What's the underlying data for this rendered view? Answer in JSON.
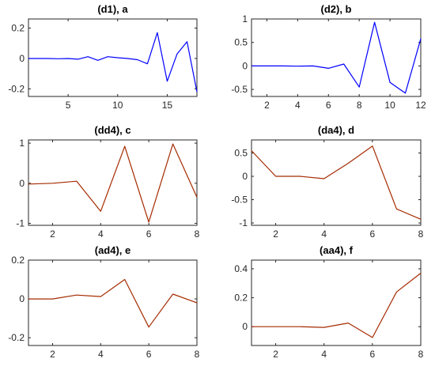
{
  "chart_data": [
    {
      "type": "line",
      "title": "(d1), a",
      "color": "#0000ff",
      "xlim": [
        1,
        18
      ],
      "ylim": [
        -0.25,
        0.26
      ],
      "xticks": [
        5,
        10,
        15
      ],
      "yticks": [
        -0.2,
        0,
        0.2
      ],
      "ytick_labels": [
        "-0.2",
        "0",
        "0.2"
      ],
      "x": [
        1,
        2,
        3,
        4,
        5,
        6,
        7,
        8,
        9,
        10,
        11,
        12,
        13,
        14,
        15,
        16,
        17,
        18
      ],
      "y": [
        0.0,
        0.0,
        0.0,
        -0.002,
        0.0,
        -0.005,
        0.012,
        -0.012,
        0.012,
        0.005,
        0.0,
        -0.008,
        -0.035,
        0.17,
        -0.15,
        0.03,
        0.11,
        -0.22
      ]
    },
    {
      "type": "line",
      "title": "(d2), b",
      "color": "#0000ff",
      "xlim": [
        1,
        12
      ],
      "ylim": [
        -0.65,
        1.0
      ],
      "xticks": [
        2,
        4,
        6,
        8,
        10,
        12
      ],
      "yticks": [
        -0.5,
        0,
        0.5,
        1
      ],
      "ytick_labels": [
        "-0.5",
        "0",
        "0.5",
        "1"
      ],
      "x": [
        1,
        2,
        3,
        4,
        5,
        6,
        7,
        8,
        9,
        10,
        11,
        12
      ],
      "y": [
        0.0,
        0.0,
        0.0,
        -0.005,
        0.0,
        -0.05,
        0.04,
        -0.45,
        0.93,
        -0.35,
        -0.58,
        0.58
      ]
    },
    {
      "type": "line",
      "title": "(dd4), c",
      "color": "#a52a00",
      "xlim": [
        1,
        8
      ],
      "ylim": [
        -1.05,
        1.08
      ],
      "xticks": [
        2,
        4,
        6,
        8
      ],
      "yticks": [
        -1,
        0,
        1
      ],
      "ytick_labels": [
        "-1",
        "0",
        "1"
      ],
      "x": [
        1,
        2,
        3,
        4,
        5,
        6,
        7,
        8
      ],
      "y": [
        -0.02,
        0.0,
        0.05,
        -0.7,
        0.92,
        -0.97,
        0.98,
        -0.35
      ]
    },
    {
      "type": "line",
      "title": "(da4), d",
      "color": "#a52a00",
      "xlim": [
        1,
        8
      ],
      "ylim": [
        -1.05,
        0.78
      ],
      "xticks": [
        2,
        4,
        6,
        8
      ],
      "yticks": [
        -1,
        -0.5,
        0,
        0.5
      ],
      "ytick_labels": [
        "-1",
        "-0.5",
        "0",
        "0.5"
      ],
      "x": [
        1,
        2,
        3,
        4,
        5,
        6,
        7,
        8
      ],
      "y": [
        0.55,
        0.0,
        0.0,
        -0.05,
        0.28,
        0.65,
        -0.7,
        -0.92
      ]
    },
    {
      "type": "line",
      "title": "(ad4), e",
      "color": "#a52a00",
      "xlim": [
        1,
        8
      ],
      "ylim": [
        -0.24,
        0.2
      ],
      "xticks": [
        2,
        4,
        6,
        8
      ],
      "yticks": [
        -0.2,
        0,
        0.2
      ],
      "ytick_labels": [
        "-0.2",
        "0",
        "0.2"
      ],
      "x": [
        1,
        2,
        3,
        4,
        5,
        6,
        7,
        8
      ],
      "y": [
        0.0,
        0.0,
        0.02,
        0.012,
        0.1,
        -0.145,
        0.025,
        -0.02
      ]
    },
    {
      "type": "line",
      "title": "(aa4), f",
      "color": "#a52a00",
      "xlim": [
        1,
        8
      ],
      "ylim": [
        -0.13,
        0.46
      ],
      "xticks": [
        2,
        4,
        6,
        8
      ],
      "yticks": [
        0,
        0.2,
        0.4
      ],
      "ytick_labels": [
        "0",
        "0.2",
        "0.4"
      ],
      "x": [
        1,
        2,
        3,
        4,
        5,
        6,
        7,
        8
      ],
      "y": [
        0.0,
        0.0,
        0.0,
        -0.005,
        0.025,
        -0.075,
        0.24,
        0.37
      ]
    }
  ]
}
